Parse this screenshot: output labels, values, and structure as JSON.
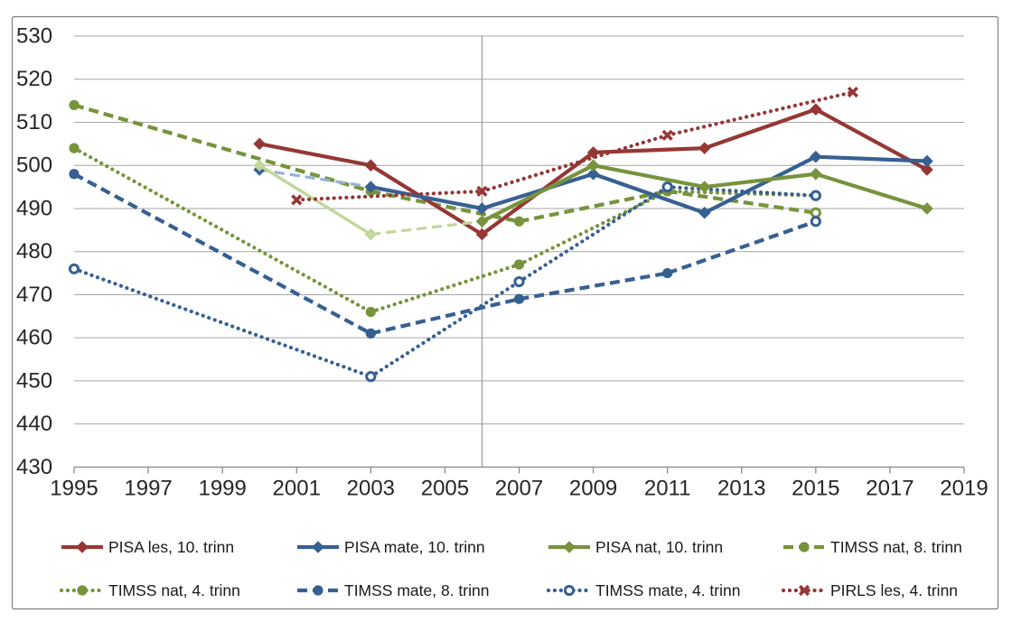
{
  "figure": {
    "background": "#ffffff",
    "border_color": "#808080",
    "text_color": "#262626"
  },
  "chart_data": {
    "type": "line",
    "title": "",
    "xlabel": "",
    "ylabel": "",
    "grid": true,
    "legend_position": "bottom",
    "x_axis": {
      "min": 1995,
      "max": 2019,
      "ticks": [
        1995,
        1997,
        1999,
        2001,
        2003,
        2005,
        2007,
        2009,
        2011,
        2013,
        2015,
        2017,
        2019
      ]
    },
    "y_axis": {
      "min": 430,
      "max": 530,
      "ticks": [
        430,
        440,
        450,
        460,
        470,
        480,
        490,
        500,
        510,
        520,
        530
      ]
    },
    "reference_line_x": 2006,
    "palette": {
      "red": "#953735",
      "blue": "#376092",
      "green": "#77933C",
      "light_green": "#C3D69B",
      "light_blue": "#95B3D7",
      "grid": "#A6A6A6",
      "axis": "#898989",
      "ref_line": "#9B9B9B"
    },
    "series": [
      {
        "name": "PISA les, 10. trinn",
        "color": "red",
        "line": "solid",
        "marker": "diamond",
        "x": [
          2000,
          2003,
          2006,
          2009,
          2012,
          2015,
          2018
        ],
        "values": [
          505,
          500,
          484,
          503,
          504,
          513,
          499
        ]
      },
      {
        "name": "PISA mate, 10. trinn",
        "color": "blue",
        "line": "solid",
        "marker": "diamond",
        "x": [
          2000,
          2003,
          2006,
          2009,
          2012,
          2015,
          2018
        ],
        "values": [
          499,
          495,
          490,
          498,
          489,
          502,
          501
        ],
        "segments": [
          {
            "from": 2000,
            "to": 2003,
            "color": "light_blue",
            "line": "dash",
            "width": 3.2
          }
        ]
      },
      {
        "name": "PISA nat, 10. trinn",
        "color": "green",
        "line": "solid",
        "marker": "diamond",
        "x": [
          2000,
          2003,
          2006,
          2009,
          2012,
          2015,
          2018
        ],
        "values": [
          500,
          484,
          487,
          500,
          495,
          498,
          490
        ],
        "segments": [
          {
            "from": 2000,
            "to": 2003,
            "color": "light_green",
            "line": "solid",
            "width": 3.4
          },
          {
            "from": 2003,
            "to": 2006,
            "color": "light_green",
            "line": "dash",
            "width": 3.2
          }
        ],
        "marker_overrides": [
          {
            "x": 2000,
            "color": "light_green"
          },
          {
            "x": 2003,
            "color": "light_green"
          }
        ]
      },
      {
        "name": "TIMSS nat, 8. trinn",
        "color": "green",
        "line": "dash",
        "marker": "circle",
        "x": [
          1995,
          2003,
          2007,
          2011,
          2015
        ],
        "values": [
          514,
          494,
          487,
          494,
          489
        ],
        "marker_overrides": [
          {
            "x": 2015,
            "marker": "circle_open"
          }
        ]
      },
      {
        "name": "TIMSS nat, 4. trinn",
        "color": "green",
        "line": "dot",
        "marker": "circle",
        "x": [
          1995,
          2003,
          2007,
          2011,
          2015
        ],
        "values": [
          504,
          466,
          477,
          494,
          493
        ],
        "marker_overrides": [
          {
            "x": 2015,
            "marker": "circle_open"
          }
        ]
      },
      {
        "name": "TIMSS mate, 8. trinn",
        "color": "blue",
        "line": "dash",
        "marker": "circle",
        "x": [
          1995,
          2003,
          2007,
          2011,
          2015
        ],
        "values": [
          498,
          461,
          469,
          475,
          487
        ],
        "marker_overrides": [
          {
            "x": 2015,
            "marker": "circle_open"
          }
        ]
      },
      {
        "name": "TIMSS mate, 4. trinn",
        "color": "blue",
        "line": "dot",
        "marker": "circle_open",
        "x": [
          1995,
          2003,
          2007,
          2011,
          2015
        ],
        "values": [
          476,
          451,
          473,
          495,
          493
        ]
      },
      {
        "name": "PIRLS les, 4. trinn",
        "color": "red",
        "line": "dot",
        "marker": "x",
        "x": [
          2001,
          2006,
          2011,
          2016
        ],
        "values": [
          492,
          494,
          507,
          517
        ]
      }
    ],
    "legend": {
      "rows": [
        [
          0,
          1,
          2,
          3
        ],
        [
          4,
          5,
          6,
          7
        ]
      ]
    }
  }
}
